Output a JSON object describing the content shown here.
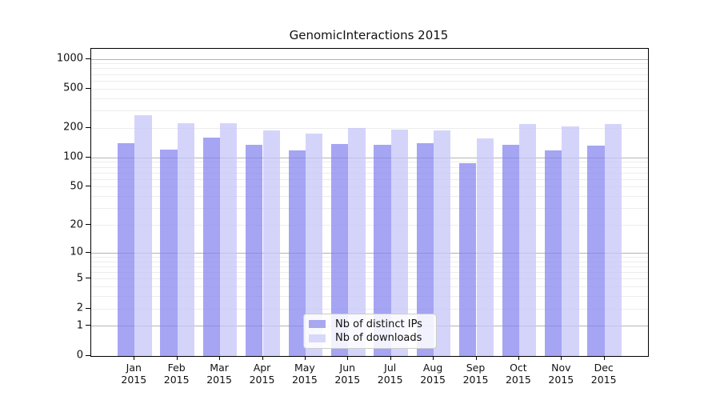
{
  "title": "GenomicInteractions 2015",
  "chart_data": {
    "type": "bar",
    "title": "GenomicInteractions 2015",
    "categories": [
      "Jan",
      "Feb",
      "Mar",
      "Apr",
      "May",
      "Jun",
      "Jul",
      "Aug",
      "Sep",
      "Oct",
      "Nov",
      "Dec"
    ],
    "category_year": "2015",
    "series": [
      {
        "key": "ips",
        "name": "Nb of distinct IPs",
        "color": "#a8a8f0",
        "color_rgba": "rgba(130,130,240,0.72)",
        "values": [
          142,
          122,
          160,
          136,
          119,
          137,
          135,
          141,
          88,
          135,
          119,
          133
        ]
      },
      {
        "key": "downloads",
        "name": "Nb of downloads",
        "color": "#d8d8f8",
        "color_rgba": "rgba(198,198,250,0.75)",
        "values": [
          270,
          226,
          226,
          190,
          176,
          201,
          195,
          189,
          157,
          219,
          210,
          222
        ]
      }
    ],
    "y_axis": {
      "scale": "log1p",
      "tick_labels": [
        1000,
        500,
        200,
        100,
        50,
        20,
        10,
        5,
        2,
        1,
        0
      ],
      "major_gridlines": [
        1,
        10,
        100,
        1000
      ],
      "ylim": [
        0,
        1240
      ]
    },
    "xlabel": "",
    "ylabel": "",
    "grid": true,
    "legend_position": "lower center"
  },
  "colors": {
    "major_grid": "#b4b4b4",
    "minor_grid": "#ececec",
    "spine": "#000000",
    "background": "#ffffff"
  }
}
